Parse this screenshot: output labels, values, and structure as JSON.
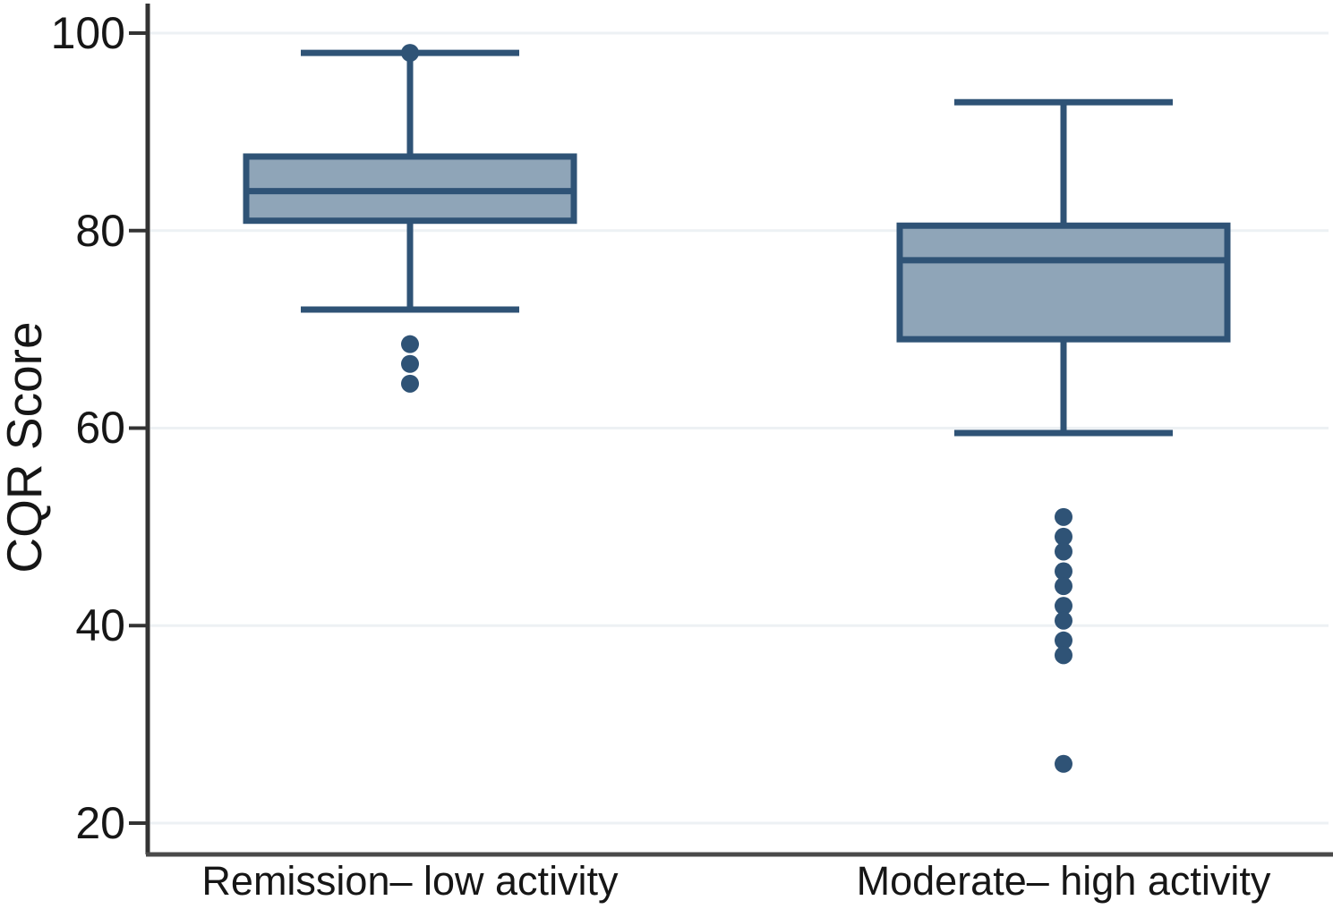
{
  "chart_data": {
    "type": "boxplot",
    "title": "",
    "xlabel": "",
    "ylabel": "CQR Score",
    "categories": [
      "Remission– low activity",
      "Moderate– high activity"
    ],
    "yticks": [
      20,
      40,
      60,
      80,
      100
    ],
    "ylim": [
      17,
      103
    ],
    "grid": "horizontal-light",
    "legend": "none",
    "series": [
      {
        "name": "Remission– low activity",
        "whisker_low": 72,
        "q1": 81,
        "median": 84,
        "q3": 87.5,
        "whisker_high": 98,
        "outliers_above": [
          98
        ],
        "outliers_below": [
          68.5,
          66.5,
          64.5
        ]
      },
      {
        "name": "Moderate– high activity",
        "whisker_low": 59.5,
        "q1": 69,
        "median": 77,
        "q3": 80.5,
        "whisker_high": 93,
        "outliers_above": [],
        "outliers_below": [
          51,
          49,
          47.5,
          45.5,
          44,
          42,
          40.5,
          38.5,
          37,
          26
        ]
      }
    ],
    "colors": {
      "box_fill": "#8fa5b8",
      "box_stroke": "#2f5376",
      "whisker": "#2f5376",
      "outlier_dot": "#2f5376",
      "gridline": "#edf1f4",
      "axis": "#333333",
      "text": "#161616",
      "background": "#ffffff"
    }
  }
}
